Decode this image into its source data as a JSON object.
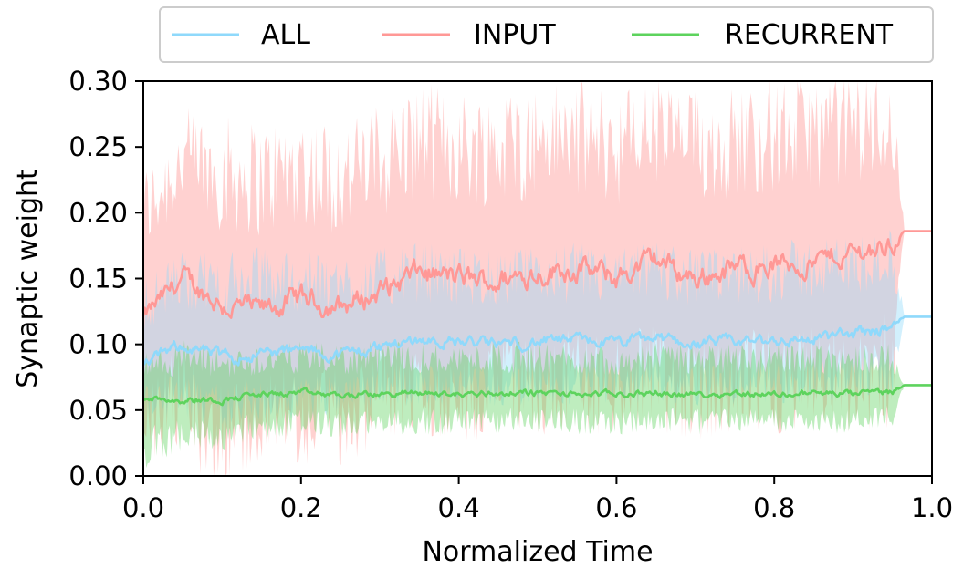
{
  "chart_data": {
    "type": "line",
    "title": "",
    "xlabel": "Normalized Time",
    "ylabel": "Synaptic weight",
    "xlim": [
      0.0,
      1.0
    ],
    "ylim": [
      0.0,
      0.3
    ],
    "xticks": [
      "0.0",
      "0.2",
      "0.4",
      "0.6",
      "0.8",
      "1.0"
    ],
    "yticks": [
      "0.00",
      "0.05",
      "0.10",
      "0.15",
      "0.20",
      "0.25",
      "0.30"
    ],
    "grid": false,
    "legend_position": "top",
    "series": [
      {
        "name": "ALL",
        "color": "#8fd9fb",
        "x": [
          0.0,
          0.05,
          0.1,
          0.15,
          0.2,
          0.25,
          0.3,
          0.35,
          0.4,
          0.45,
          0.5,
          0.55,
          0.6,
          0.65,
          0.7,
          0.75,
          0.8,
          0.85,
          0.9,
          0.95,
          0.965,
          1.0
        ],
        "mean": [
          0.085,
          0.1,
          0.09,
          0.093,
          0.095,
          0.092,
          0.098,
          0.104,
          0.102,
          0.1,
          0.102,
          0.103,
          0.101,
          0.105,
          0.1,
          0.102,
          0.103,
          0.104,
          0.108,
          0.113,
          0.121,
          0.121
        ],
        "band_low": [
          0.055,
          0.06,
          0.05,
          0.055,
          0.058,
          0.06,
          0.065,
          0.068,
          0.068,
          0.066,
          0.068,
          0.068,
          0.066,
          0.07,
          0.066,
          0.068,
          0.068,
          0.07,
          0.072,
          0.075,
          0.121,
          0.121
        ],
        "band_high": [
          0.13,
          0.15,
          0.145,
          0.15,
          0.148,
          0.145,
          0.15,
          0.155,
          0.152,
          0.15,
          0.152,
          0.155,
          0.15,
          0.158,
          0.15,
          0.152,
          0.155,
          0.158,
          0.16,
          0.165,
          0.121,
          0.121
        ]
      },
      {
        "name": "INPUT",
        "color": "#ff9896",
        "x": [
          0.0,
          0.05,
          0.1,
          0.15,
          0.2,
          0.25,
          0.3,
          0.35,
          0.4,
          0.45,
          0.5,
          0.55,
          0.6,
          0.65,
          0.7,
          0.75,
          0.8,
          0.85,
          0.9,
          0.95,
          0.965,
          1.0
        ],
        "mean": [
          0.12,
          0.15,
          0.13,
          0.125,
          0.135,
          0.128,
          0.14,
          0.155,
          0.15,
          0.148,
          0.155,
          0.158,
          0.15,
          0.165,
          0.15,
          0.158,
          0.16,
          0.162,
          0.17,
          0.175,
          0.186,
          0.186
        ],
        "band_low": [
          0.04,
          0.05,
          0.03,
          0.04,
          0.045,
          0.04,
          0.055,
          0.065,
          0.06,
          0.06,
          0.065,
          0.068,
          0.062,
          0.07,
          0.06,
          0.065,
          0.068,
          0.07,
          0.072,
          0.075,
          0.186,
          0.186
        ],
        "band_high": [
          0.2,
          0.24,
          0.23,
          0.225,
          0.235,
          0.225,
          0.24,
          0.255,
          0.25,
          0.25,
          0.255,
          0.258,
          0.25,
          0.262,
          0.25,
          0.255,
          0.258,
          0.26,
          0.265,
          0.27,
          0.186,
          0.186
        ]
      },
      {
        "name": "RECURRENT",
        "color": "#5dd35d",
        "x": [
          0.0,
          0.05,
          0.1,
          0.15,
          0.2,
          0.25,
          0.3,
          0.35,
          0.4,
          0.45,
          0.5,
          0.55,
          0.6,
          0.65,
          0.7,
          0.75,
          0.8,
          0.85,
          0.9,
          0.95,
          0.965,
          1.0
        ],
        "mean": [
          0.06,
          0.058,
          0.058,
          0.062,
          0.063,
          0.061,
          0.062,
          0.063,
          0.062,
          0.063,
          0.063,
          0.062,
          0.062,
          0.063,
          0.062,
          0.063,
          0.062,
          0.063,
          0.062,
          0.064,
          0.069,
          0.069
        ],
        "band_low": [
          0.02,
          0.03,
          0.03,
          0.038,
          0.04,
          0.038,
          0.04,
          0.04,
          0.04,
          0.04,
          0.042,
          0.04,
          0.04,
          0.042,
          0.04,
          0.042,
          0.04,
          0.042,
          0.04,
          0.045,
          0.069,
          0.069
        ],
        "band_high": [
          0.085,
          0.09,
          0.085,
          0.088,
          0.09,
          0.088,
          0.09,
          0.09,
          0.088,
          0.09,
          0.09,
          0.088,
          0.088,
          0.09,
          0.088,
          0.09,
          0.088,
          0.09,
          0.088,
          0.09,
          0.069,
          0.069
        ]
      }
    ]
  }
}
